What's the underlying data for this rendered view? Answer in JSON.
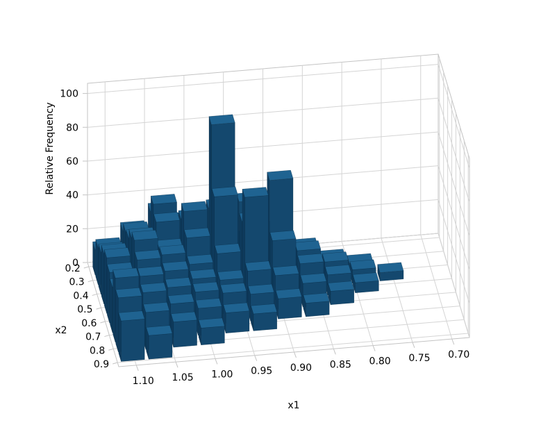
{
  "figure": {
    "background": "#ffffff"
  },
  "chart_data": {
    "type": "3d-histogram",
    "title": "",
    "xlabel": "x1",
    "ylabel": "x2",
    "zlabel": "Relative Frequency",
    "x1_axis_inverted": true,
    "x1_range": [
      0.7,
      1.1
    ],
    "x2_range": [
      0.2,
      0.9
    ],
    "z_range": [
      0,
      106
    ],
    "x1_tick_labels": [
      "1.10",
      "1.05",
      "1.00",
      "0.95",
      "0.90",
      "0.85",
      "0.80",
      "0.75",
      "0.70"
    ],
    "x2_tick_labels": [
      "0.2",
      "0.3",
      "0.4",
      "0.5",
      "0.6",
      "0.7",
      "0.8",
      "0.9"
    ],
    "z_tick_labels": [
      "0",
      "20",
      "40",
      "60",
      "80",
      "100"
    ],
    "x1_bin_edges": [
      0.7,
      0.735,
      0.77,
      0.805,
      0.84,
      0.875,
      0.91,
      0.945,
      0.98,
      1.015,
      1.05,
      1.085,
      1.12
    ],
    "x2_bin_edges": [
      0.2,
      0.27,
      0.34,
      0.41,
      0.48,
      0.55,
      0.62,
      0.69,
      0.76,
      0.83,
      0.9
    ],
    "heights_note": "rows = x2 bins (0.2 back to 0.9 front), cols = x1 bins (0.70 to 1.12 ascending)",
    "heights": [
      [
        0,
        0,
        0,
        0,
        0,
        0,
        8,
        15,
        28,
        35,
        25,
        15
      ],
      [
        0,
        0,
        0,
        0,
        0,
        10,
        20,
        40,
        35,
        45,
        30,
        22
      ],
      [
        0,
        0,
        6,
        10,
        18,
        30,
        48,
        95,
        45,
        40,
        32,
        25
      ],
      [
        0,
        5,
        8,
        14,
        22,
        65,
        42,
        58,
        35,
        30,
        38,
        30
      ],
      [
        0,
        0,
        6,
        12,
        20,
        35,
        62,
        30,
        25,
        32,
        42,
        33
      ],
      [
        0,
        0,
        0,
        8,
        14,
        20,
        24,
        20,
        22,
        28,
        36,
        30
      ],
      [
        0,
        0,
        0,
        0,
        8,
        12,
        16,
        18,
        20,
        24,
        32,
        27
      ],
      [
        0,
        0,
        0,
        0,
        0,
        0,
        10,
        12,
        16,
        20,
        28,
        38
      ],
      [
        0,
        0,
        0,
        0,
        0,
        0,
        0,
        0,
        10,
        15,
        22,
        32
      ],
      [
        0,
        0,
        0,
        0,
        0,
        0,
        0,
        0,
        0,
        0,
        14,
        24
      ]
    ],
    "legend": null,
    "grid": true,
    "colors": {
      "bar_top": "#1f6391",
      "bar_front": "#14486e",
      "bar_side": "#0e3a5c",
      "bar_edge": "rgba(8,40,64,0.55)",
      "grid_line": "#d4d4d4",
      "pane_edge": "#c3c3c3",
      "tick_text": "#000000"
    }
  }
}
